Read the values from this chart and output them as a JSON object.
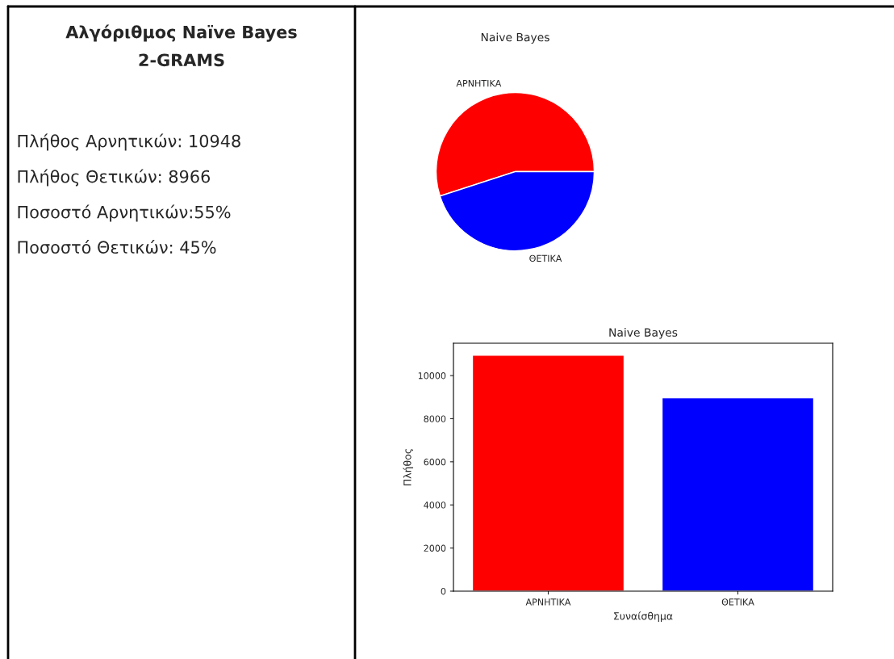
{
  "chart_data": [
    {
      "type": "other",
      "title": "Αλγόριθμος Naïve Bayes",
      "subtitle": "2-GRAMS",
      "annotations": [
        "Πλήθος Αρνητικών: 10948",
        "Πλήθος Θετικών: 8966",
        "Ποσοστό Αρνητικών:55%",
        "Ποσοστό Θετικών: 45%"
      ]
    },
    {
      "type": "pie",
      "title": "Naive Bayes",
      "categories": [
        "ΑΡΝΗΤΙΚΑ",
        "ΘΕΤΙΚΑ"
      ],
      "values": [
        55,
        45
      ],
      "colors": [
        "#ff0000",
        "#0000ff"
      ]
    },
    {
      "type": "bar",
      "title": "Naive Bayes",
      "categories": [
        "ΑΡΝΗΤΙΚΑ",
        "ΘΕΤΙΚΑ"
      ],
      "values": [
        10948,
        8966
      ],
      "colors": [
        "#ff0000",
        "#0000ff"
      ],
      "xlabel": "Συναίσθημα",
      "ylabel": "Πλήθος",
      "ylim": [
        0,
        11500
      ],
      "yticks": [
        0,
        2000,
        4000,
        6000,
        8000,
        10000
      ],
      "grid": false
    }
  ]
}
